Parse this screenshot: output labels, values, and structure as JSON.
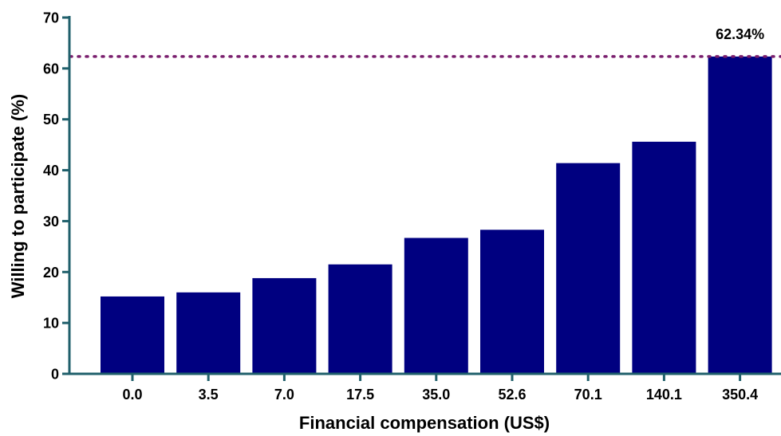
{
  "chart_data": {
    "type": "bar",
    "title": "",
    "xlabel": "Financial compensation (US$)",
    "ylabel": "Willing to participate (%)",
    "categories": [
      "0.0",
      "3.5",
      "7.0",
      "17.5",
      "35.0",
      "52.6",
      "70.1",
      "140.1",
      "350.4"
    ],
    "values": [
      15.2,
      16.0,
      18.8,
      21.5,
      26.7,
      28.3,
      41.4,
      45.6,
      62.34
    ],
    "ylim": [
      0,
      70
    ],
    "yticks": [
      0,
      10,
      20,
      30,
      40,
      50,
      60,
      70
    ],
    "reference_line": {
      "value": 62.34,
      "label": "62.34%",
      "style": "dotted",
      "color": "#7a1f6e"
    },
    "bar_color": "#000080",
    "axis_color": "#1f5f6b",
    "grid": false,
    "legend": "none"
  }
}
